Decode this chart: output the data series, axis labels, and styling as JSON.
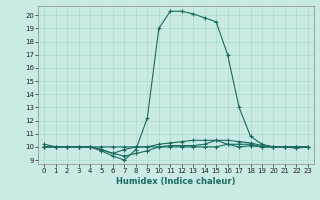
{
  "title": "",
  "xlabel": "Humidex (Indice chaleur)",
  "bg_color": "#caeae4",
  "line_color": "#1a6b5e",
  "xlim": [
    -0.5,
    23.5
  ],
  "ylim": [
    8.7,
    20.7
  ],
  "xticks": [
    0,
    1,
    2,
    3,
    4,
    5,
    6,
    7,
    8,
    9,
    10,
    11,
    12,
    13,
    14,
    15,
    16,
    17,
    18,
    19,
    20,
    21,
    22,
    23
  ],
  "yticks": [
    9,
    10,
    11,
    12,
    13,
    14,
    15,
    16,
    17,
    18,
    19,
    20
  ],
  "series_main": [
    [
      0,
      10.2
    ],
    [
      1,
      10
    ],
    [
      2,
      10
    ],
    [
      3,
      10
    ],
    [
      4,
      10
    ],
    [
      5,
      9.7
    ],
    [
      6,
      9.3
    ],
    [
      7,
      9.0
    ],
    [
      8,
      9.8
    ],
    [
      9,
      12.2
    ],
    [
      10,
      19
    ],
    [
      11,
      20.3
    ],
    [
      12,
      20.3
    ],
    [
      13,
      20.1
    ],
    [
      14,
      19.8
    ],
    [
      15,
      19.5
    ],
    [
      16,
      17
    ],
    [
      17,
      13
    ],
    [
      18,
      10.8
    ],
    [
      19,
      10.2
    ],
    [
      20,
      10
    ],
    [
      21,
      10
    ],
    [
      22,
      9.9
    ],
    [
      23,
      10
    ]
  ],
  "series2": [
    [
      0,
      10
    ],
    [
      1,
      10
    ],
    [
      2,
      10
    ],
    [
      3,
      10
    ],
    [
      4,
      10
    ],
    [
      5,
      9.8
    ],
    [
      6,
      9.5
    ],
    [
      7,
      9.8
    ],
    [
      8,
      10
    ],
    [
      9,
      10
    ],
    [
      10,
      10.2
    ],
    [
      11,
      10.3
    ],
    [
      12,
      10.4
    ],
    [
      13,
      10.5
    ],
    [
      14,
      10.5
    ],
    [
      15,
      10.5
    ],
    [
      16,
      10.5
    ],
    [
      17,
      10.4
    ],
    [
      18,
      10.3
    ],
    [
      19,
      10.1
    ],
    [
      20,
      10
    ],
    [
      21,
      10
    ],
    [
      22,
      10
    ],
    [
      23,
      10
    ]
  ],
  "series3": [
    [
      0,
      10
    ],
    [
      1,
      10
    ],
    [
      2,
      10
    ],
    [
      3,
      10
    ],
    [
      4,
      10
    ],
    [
      5,
      10
    ],
    [
      6,
      10
    ],
    [
      7,
      10
    ],
    [
      8,
      10
    ],
    [
      9,
      10
    ],
    [
      10,
      10
    ],
    [
      11,
      10
    ],
    [
      12,
      10
    ],
    [
      13,
      10
    ],
    [
      14,
      10
    ],
    [
      15,
      10
    ],
    [
      16,
      10.2
    ],
    [
      17,
      10.2
    ],
    [
      18,
      10.2
    ],
    [
      19,
      10
    ],
    [
      20,
      10
    ],
    [
      21,
      10
    ],
    [
      22,
      10
    ],
    [
      23,
      10
    ]
  ],
  "series4": [
    [
      0,
      10
    ],
    [
      1,
      10
    ],
    [
      2,
      10
    ],
    [
      3,
      10
    ],
    [
      4,
      10
    ],
    [
      5,
      9.8
    ],
    [
      6,
      9.5
    ],
    [
      7,
      9.3
    ],
    [
      8,
      9.5
    ],
    [
      9,
      9.7
    ],
    [
      10,
      10
    ],
    [
      11,
      10.1
    ],
    [
      12,
      10.1
    ],
    [
      13,
      10.1
    ],
    [
      14,
      10.2
    ],
    [
      15,
      10.5
    ],
    [
      16,
      10.2
    ],
    [
      17,
      10
    ],
    [
      18,
      10.1
    ],
    [
      19,
      10
    ],
    [
      20,
      10
    ],
    [
      21,
      10
    ],
    [
      22,
      10
    ],
    [
      23,
      10
    ]
  ]
}
